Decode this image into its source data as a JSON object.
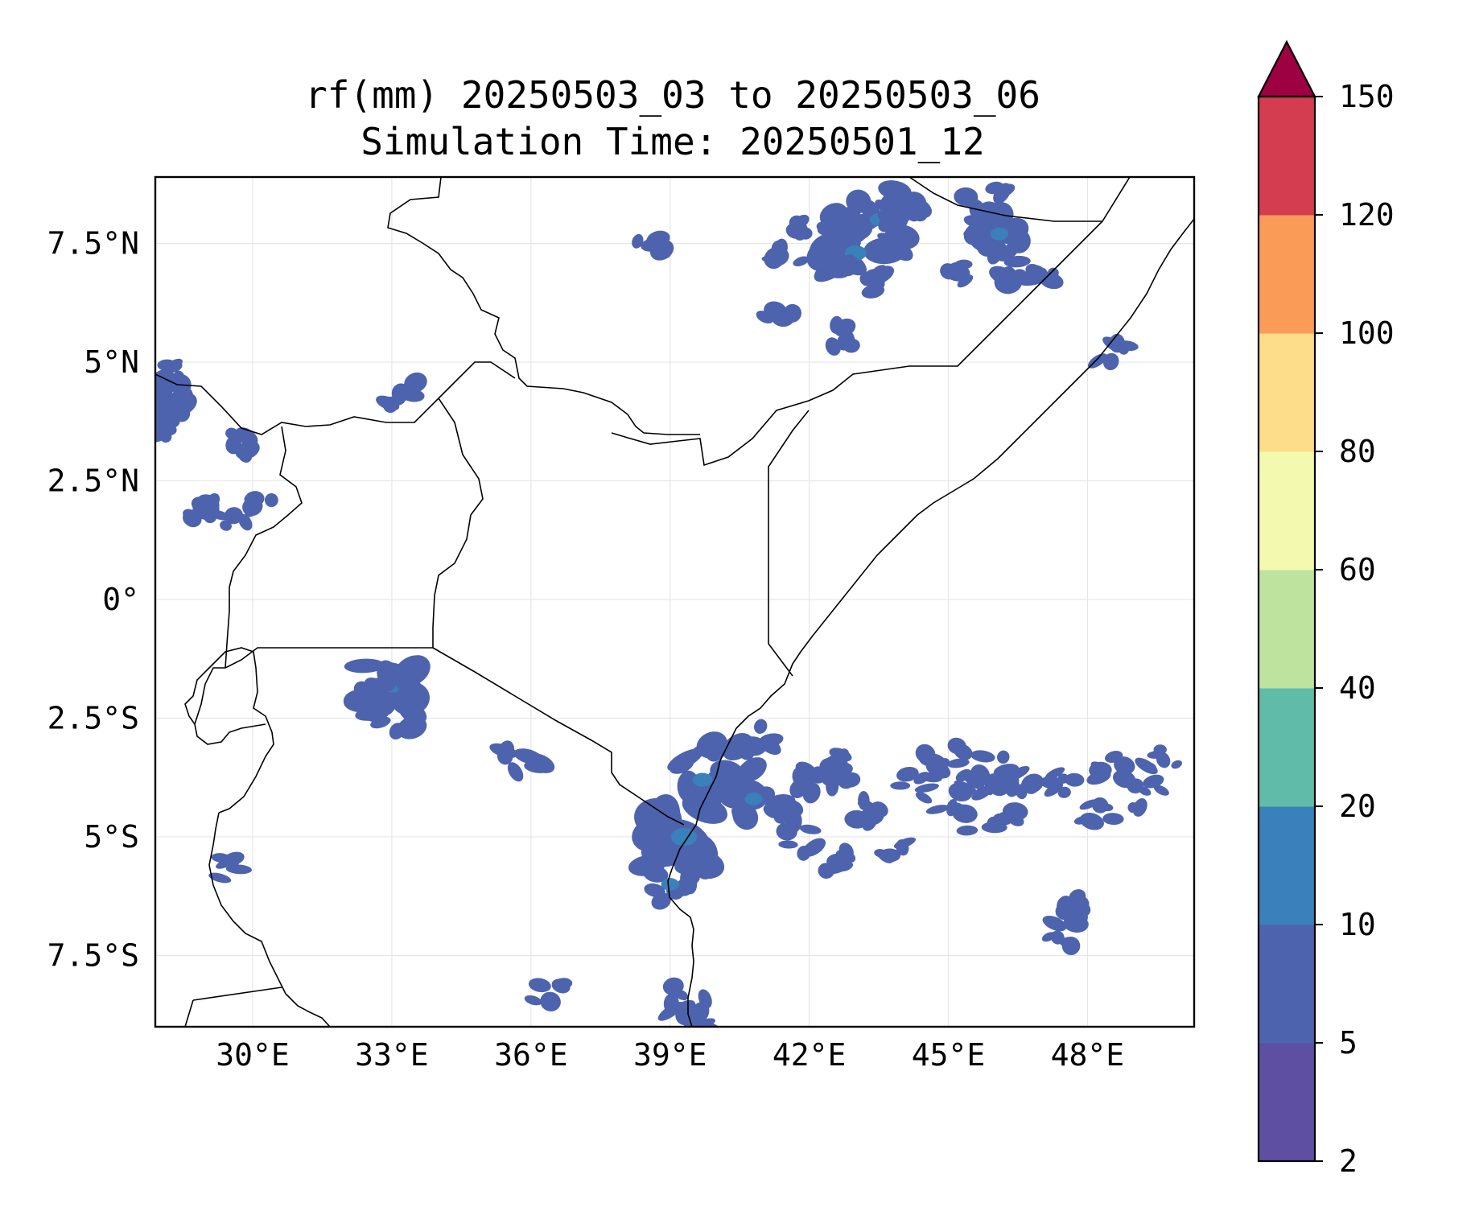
{
  "title": {
    "line1": "rf(mm) 20250503_03 to 20250503_06",
    "line2": "Simulation Time: 20250501_12"
  },
  "map": {
    "lon_range": [
      27.9,
      50.3
    ],
    "lat_range": [
      -9.0,
      8.9
    ],
    "x_ticks": [
      {
        "value": 30,
        "label": "30°E"
      },
      {
        "value": 33,
        "label": "33°E"
      },
      {
        "value": 36,
        "label": "36°E"
      },
      {
        "value": 39,
        "label": "39°E"
      },
      {
        "value": 42,
        "label": "42°E"
      },
      {
        "value": 45,
        "label": "45°E"
      },
      {
        "value": 48,
        "label": "48°E"
      }
    ],
    "y_ticks": [
      {
        "value": 7.5,
        "label": "7.5°N"
      },
      {
        "value": 5,
        "label": "5°N"
      },
      {
        "value": 2.5,
        "label": "2.5°N"
      },
      {
        "value": 0,
        "label": "0°"
      },
      {
        "value": -2.5,
        "label": "2.5°S"
      },
      {
        "value": -5,
        "label": "5°S"
      },
      {
        "value": -7.5,
        "label": "7.5°S"
      }
    ]
  },
  "colorbar": {
    "levels": [
      "2",
      "5",
      "10",
      "20",
      "40",
      "60",
      "80",
      "100",
      "120",
      "150"
    ],
    "colors": [
      "#5e4fa2",
      "#4d63ad",
      "#3a80ba",
      "#60bca8",
      "#bde39f",
      "#f3f9ae",
      "#fddd89",
      "#fa9b58",
      "#d43d4f"
    ],
    "extend_color": "#9e0142"
  },
  "chart_data": {
    "type": "heatmap",
    "variable": "rf(mm)",
    "units": "mm",
    "period": "20250503_03 to 20250503_06",
    "simulation_time": "20250501_12",
    "levels": [
      2,
      5,
      10,
      20,
      40,
      60,
      80,
      100,
      120,
      150
    ],
    "extend": "max",
    "rain_areas": [
      {
        "lon": 42.8,
        "lat": 7.8,
        "value": 4
      },
      {
        "lon": 43.5,
        "lat": 8.0,
        "value": 6
      },
      {
        "lon": 43.0,
        "lat": 7.3,
        "value": 8
      },
      {
        "lon": 44.0,
        "lat": 7.6,
        "value": 4
      },
      {
        "lon": 43.9,
        "lat": 8.3,
        "value": 5
      },
      {
        "lon": 42.0,
        "lat": 7.9,
        "value": 3
      },
      {
        "lon": 41.5,
        "lat": 7.3,
        "value": 3
      },
      {
        "lon": 43.2,
        "lat": 6.8,
        "value": 4
      },
      {
        "lon": 45.3,
        "lat": 6.8,
        "value": 3
      },
      {
        "lon": 45.8,
        "lat": 8.3,
        "value": 5
      },
      {
        "lon": 46.1,
        "lat": 7.7,
        "value": 6
      },
      {
        "lon": 46.4,
        "lat": 7.0,
        "value": 5
      },
      {
        "lon": 46.9,
        "lat": 6.6,
        "value": 3
      },
      {
        "lon": 28.2,
        "lat": 4.3,
        "value": 5
      },
      {
        "lon": 28.4,
        "lat": 4.7,
        "value": 3
      },
      {
        "lon": 28.8,
        "lat": 1.8,
        "value": 3
      },
      {
        "lon": 29.3,
        "lat": 1.8,
        "value": 3
      },
      {
        "lon": 30.1,
        "lat": 1.9,
        "value": 3
      },
      {
        "lon": 29.7,
        "lat": 3.3,
        "value": 3
      },
      {
        "lon": 33.2,
        "lat": 4.3,
        "value": 3
      },
      {
        "lon": 32.9,
        "lat": -1.9,
        "value": 8
      },
      {
        "lon": 32.5,
        "lat": -2.1,
        "value": 4
      },
      {
        "lon": 33.1,
        "lat": -2.4,
        "value": 5
      },
      {
        "lon": 35.8,
        "lat": -3.5,
        "value": 4
      },
      {
        "lon": 38.6,
        "lat": 7.5,
        "value": 3
      },
      {
        "lon": 41.3,
        "lat": 5.8,
        "value": 3
      },
      {
        "lon": 42.6,
        "lat": 5.5,
        "value": 3
      },
      {
        "lon": 39.7,
        "lat": -3.8,
        "value": 7
      },
      {
        "lon": 39.3,
        "lat": -5.0,
        "value": 10
      },
      {
        "lon": 39.0,
        "lat": -6.0,
        "value": 6
      },
      {
        "lon": 40.3,
        "lat": -3.4,
        "value": 5
      },
      {
        "lon": 41.0,
        "lat": -3.0,
        "value": 4
      },
      {
        "lon": 40.8,
        "lat": -4.2,
        "value": 6
      },
      {
        "lon": 41.5,
        "lat": -4.5,
        "value": 4
      },
      {
        "lon": 42.1,
        "lat": -3.7,
        "value": 5
      },
      {
        "lon": 41.8,
        "lat": -5.1,
        "value": 3
      },
      {
        "lon": 42.9,
        "lat": -3.6,
        "value": 4
      },
      {
        "lon": 43.3,
        "lat": -4.5,
        "value": 3
      },
      {
        "lon": 42.6,
        "lat": -5.5,
        "value": 3
      },
      {
        "lon": 44.3,
        "lat": -3.9,
        "value": 3
      },
      {
        "lon": 44.9,
        "lat": -3.4,
        "value": 4
      },
      {
        "lon": 45.4,
        "lat": -3.9,
        "value": 3
      },
      {
        "lon": 45.9,
        "lat": -3.6,
        "value": 4
      },
      {
        "lon": 46.6,
        "lat": -3.8,
        "value": 3
      },
      {
        "lon": 45.1,
        "lat": -4.6,
        "value": 3
      },
      {
        "lon": 46.3,
        "lat": -4.7,
        "value": 3
      },
      {
        "lon": 47.5,
        "lat": -3.8,
        "value": 3
      },
      {
        "lon": 48.6,
        "lat": -3.6,
        "value": 3
      },
      {
        "lon": 49.6,
        "lat": -3.4,
        "value": 3
      },
      {
        "lon": 49.3,
        "lat": -4.1,
        "value": 3
      },
      {
        "lon": 48.2,
        "lat": -4.5,
        "value": 3
      },
      {
        "lon": 43.8,
        "lat": -5.2,
        "value": 3
      },
      {
        "lon": 47.7,
        "lat": -6.5,
        "value": 3
      },
      {
        "lon": 47.4,
        "lat": -7.1,
        "value": 3
      },
      {
        "lon": 39.4,
        "lat": -8.4,
        "value": 4
      },
      {
        "lon": 39.6,
        "lat": -8.8,
        "value": 3
      },
      {
        "lon": 36.4,
        "lat": -8.3,
        "value": 3
      },
      {
        "lon": 48.5,
        "lat": 5.3,
        "value": 3
      },
      {
        "lon": 29.4,
        "lat": -5.6,
        "value": 3
      },
      {
        "lon": 28.1,
        "lat": 3.7,
        "value": 3
      }
    ]
  }
}
